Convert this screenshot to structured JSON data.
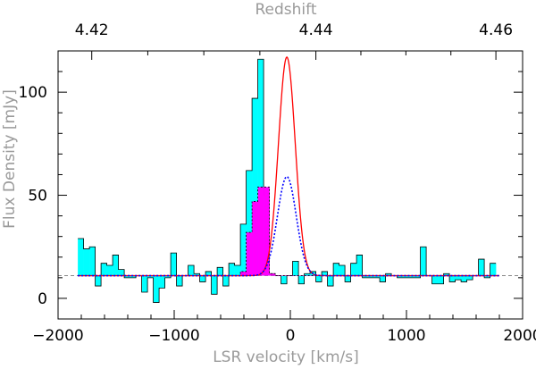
{
  "chart_data": {
    "type": "bar",
    "xlabel": "LSR velocity [km/s]",
    "ylabel": "Flux Density [mJy]",
    "top_axis_label": "Redshift",
    "xlim": [
      -2000,
      2000
    ],
    "ylim": [
      -10,
      120
    ],
    "x_ticks": [
      -2000,
      -1000,
      0,
      1000,
      2000
    ],
    "x_tick_labels": [
      "−2000",
      "−1000",
      "0",
      "1000",
      "2000"
    ],
    "y_ticks": [
      0,
      50,
      100
    ],
    "y_tick_labels": [
      "0",
      "50",
      "100"
    ],
    "top_ticks": [
      {
        "label": "4.42",
        "velocity": -1710
      },
      {
        "label": "4.44",
        "velocity": 220
      },
      {
        "label": "4.46",
        "velocity": 1770
      }
    ],
    "baseline": 11,
    "bin_width": 50,
    "bins_start": -1830,
    "observed_spectrum": {
      "color": "#00ffff",
      "values": [
        29,
        24,
        25,
        6,
        17,
        16,
        21,
        14,
        10,
        10,
        11,
        3,
        10,
        -2,
        5,
        10,
        22,
        6,
        11,
        16,
        12,
        8,
        13,
        2,
        15,
        6,
        17,
        16,
        36,
        62,
        97,
        116,
        50,
        12,
        11,
        7,
        11,
        18,
        7,
        12,
        13,
        8,
        13,
        6,
        17,
        16,
        8,
        17,
        21,
        10,
        10,
        10,
        8,
        12,
        11,
        10,
        10,
        10,
        10,
        25,
        11,
        7,
        7,
        12,
        8,
        9,
        8,
        9,
        11,
        19,
        10,
        17
      ]
    },
    "component_spectrum": {
      "color": "#ff00ff",
      "values": [
        11,
        11,
        11,
        11,
        11,
        11,
        11,
        11,
        11,
        11,
        11,
        11,
        11,
        11,
        11,
        11,
        11,
        11,
        11,
        11,
        11,
        11,
        11,
        11,
        11,
        11,
        11,
        11,
        13,
        32,
        47,
        54,
        54,
        12,
        11,
        11,
        11,
        11,
        11,
        11,
        11,
        11,
        11,
        11,
        11,
        11,
        11,
        11,
        11,
        11,
        11,
        11,
        11,
        11,
        11,
        11,
        11,
        11,
        11,
        11,
        11,
        11,
        11,
        11,
        11,
        11,
        11,
        11,
        11,
        11,
        11,
        11
      ]
    },
    "fit_total": {
      "color": "#ff0000",
      "peak": 117,
      "center": -30,
      "fwhm": 170
    },
    "fit_component": {
      "color": "#0000ff",
      "peak": 59,
      "center": -30,
      "fwhm": 190
    }
  }
}
